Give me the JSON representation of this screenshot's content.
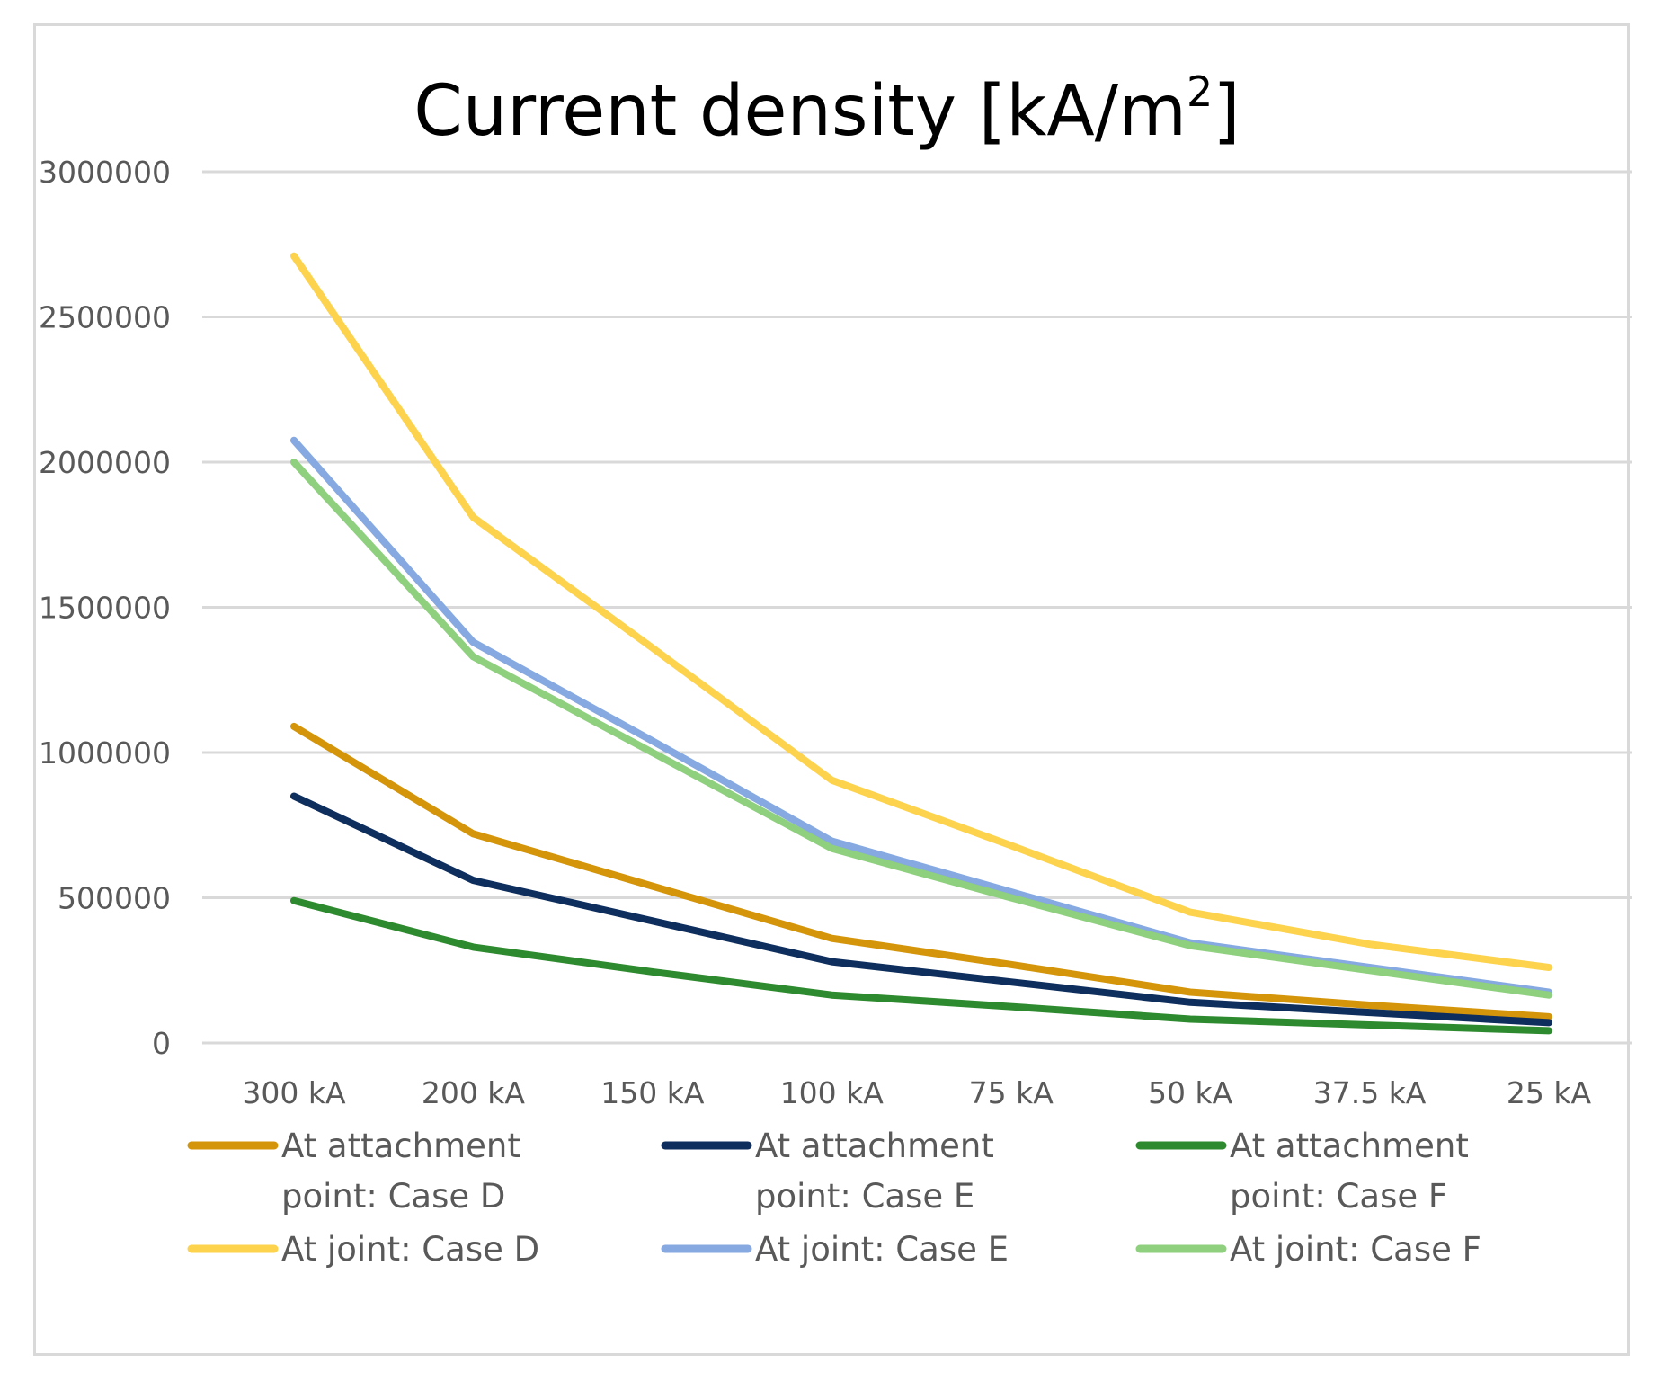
{
  "chart_data": {
    "type": "line",
    "title_main": "Current density [kA/m",
    "title_sup": "2",
    "title_end": "]",
    "categories": [
      "300 kA",
      "200 kA",
      "150 kA",
      "100 kA",
      "75 kA",
      "50 kA",
      "37.5 kA",
      "25 kA"
    ],
    "ylim": [
      0,
      3000000
    ],
    "yticks": [
      0,
      500000,
      1000000,
      1500000,
      2000000,
      2500000,
      3000000
    ],
    "ytick_labels": [
      "0",
      "500000",
      "1000000",
      "1500000",
      "2000000",
      "2500000",
      "3000000"
    ],
    "grid": true,
    "legend_position": "bottom",
    "series": [
      {
        "name": "At attachment point: Case D",
        "legend_lines": [
          "At attachment",
          "point: Case D"
        ],
        "color": "#d4950a",
        "values": [
          1090000,
          720000,
          540000,
          360000,
          270000,
          175000,
          130000,
          90000
        ]
      },
      {
        "name": "At attachment point: Case E",
        "legend_lines": [
          "At attachment",
          "point: Case E"
        ],
        "color": "#0e2e5e",
        "values": [
          850000,
          560000,
          420000,
          280000,
          210000,
          140000,
          105000,
          70000
        ]
      },
      {
        "name": "At attachment point: Case F",
        "legend_lines": [
          "At attachment",
          "point: Case F"
        ],
        "color": "#2e8a2e",
        "values": [
          490000,
          330000,
          245000,
          165000,
          125000,
          82000,
          62000,
          42000
        ]
      },
      {
        "name": "At joint: Case D",
        "legend_lines": [
          "At joint: Case D"
        ],
        "color": "#fdd34e",
        "values": [
          2710000,
          1810000,
          1360000,
          905000,
          680000,
          450000,
          340000,
          260000
        ]
      },
      {
        "name": "At joint: Case E",
        "legend_lines": [
          "At joint: Case E"
        ],
        "color": "#85a9e0",
        "values": [
          2075000,
          1380000,
          1040000,
          695000,
          520000,
          345000,
          260000,
          175000
        ]
      },
      {
        "name": "At joint: Case F",
        "legend_lines": [
          "At joint: Case F"
        ],
        "color": "#8fd07f",
        "values": [
          2000000,
          1330000,
          1000000,
          670000,
          500000,
          335000,
          250000,
          165000
        ]
      }
    ]
  }
}
